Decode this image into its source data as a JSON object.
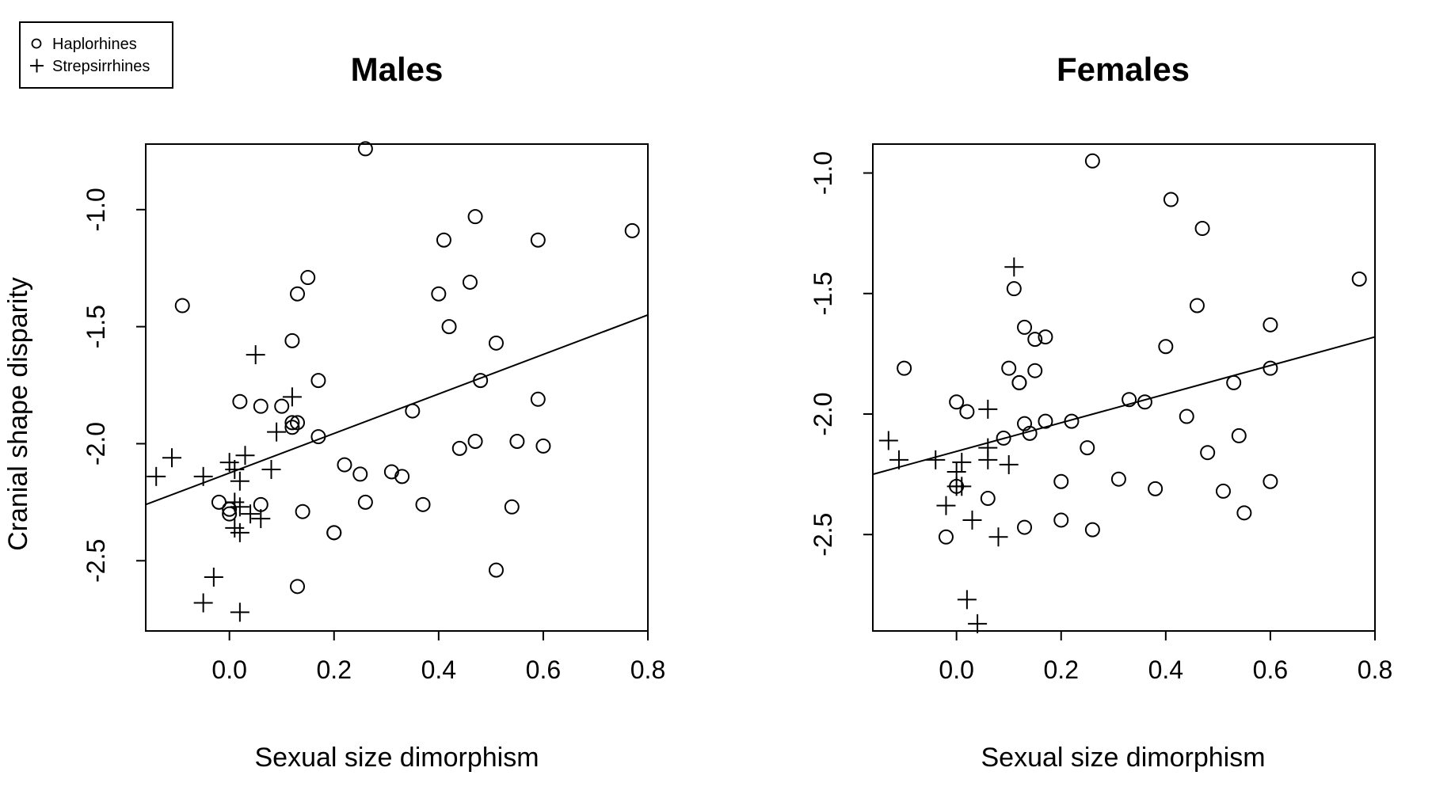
{
  "legend": {
    "items": [
      {
        "label": "Haplorhines",
        "marker": "circle"
      },
      {
        "label": "Strepsirrhines",
        "marker": "plus"
      }
    ],
    "placement": "top-left"
  },
  "shared": {
    "ylabel": "Cranial shape disparity"
  },
  "colors": {
    "ink": "#000000",
    "background": "#ffffff"
  },
  "chart_data": [
    {
      "type": "scatter",
      "title": "Males",
      "xlabel": "Sexual size dimorphism",
      "ylabel": "Cranial shape disparity",
      "xlim": [
        -0.16,
        0.8
      ],
      "ylim": [
        -2.8,
        -0.72
      ],
      "xticks": [
        0.0,
        0.2,
        0.4,
        0.6,
        0.8
      ],
      "xtick_labels": [
        "0.0",
        "0.2",
        "0.4",
        "0.6",
        "0.8"
      ],
      "yticks": [
        -2.5,
        -2.0,
        -1.5,
        -1.0
      ],
      "ytick_labels": [
        "-2.5",
        "-2.0",
        "-1.5",
        "-1.0"
      ],
      "grid": false,
      "fit_line": {
        "x": [
          -0.16,
          0.8
        ],
        "y": [
          -2.26,
          -1.45
        ]
      },
      "series": [
        {
          "name": "Haplorhines",
          "marker": "circle",
          "points": [
            [
              -0.09,
              -1.41
            ],
            [
              0.26,
              -0.74
            ],
            [
              0.15,
              -1.29
            ],
            [
              0.13,
              -1.36
            ],
            [
              0.12,
              -1.56
            ],
            [
              0.41,
              -1.13
            ],
            [
              0.47,
              -1.03
            ],
            [
              0.4,
              -1.36
            ],
            [
              0.46,
              -1.31
            ],
            [
              0.42,
              -1.5
            ],
            [
              0.59,
              -1.13
            ],
            [
              0.77,
              -1.09
            ],
            [
              0.51,
              -1.57
            ],
            [
              0.48,
              -1.73
            ],
            [
              0.17,
              -1.73
            ],
            [
              0.02,
              -1.82
            ],
            [
              0.06,
              -1.84
            ],
            [
              0.1,
              -1.84
            ],
            [
              0.12,
              -1.91
            ],
            [
              0.12,
              -1.93
            ],
            [
              0.13,
              -1.91
            ],
            [
              0.17,
              -1.97
            ],
            [
              0.35,
              -1.86
            ],
            [
              0.59,
              -1.81
            ],
            [
              0.44,
              -2.02
            ],
            [
              0.47,
              -1.99
            ],
            [
              0.55,
              -1.99
            ],
            [
              0.6,
              -2.01
            ],
            [
              0.22,
              -2.09
            ],
            [
              0.25,
              -2.13
            ],
            [
              0.31,
              -2.12
            ],
            [
              0.33,
              -2.14
            ],
            [
              -0.02,
              -2.25
            ],
            [
              0.0,
              -2.28
            ],
            [
              0.0,
              -2.3
            ],
            [
              0.06,
              -2.26
            ],
            [
              0.14,
              -2.29
            ],
            [
              0.26,
              -2.25
            ],
            [
              0.37,
              -2.26
            ],
            [
              0.54,
              -2.27
            ],
            [
              0.2,
              -2.38
            ],
            [
              0.2,
              -2.38
            ],
            [
              0.13,
              -2.61
            ],
            [
              0.51,
              -2.54
            ]
          ]
        },
        {
          "name": "Strepsirrhines",
          "marker": "plus",
          "points": [
            [
              0.05,
              -1.62
            ],
            [
              0.12,
              -1.8
            ],
            [
              0.09,
              -1.95
            ],
            [
              -0.11,
              -2.06
            ],
            [
              0.0,
              -2.08
            ],
            [
              0.03,
              -2.05
            ],
            [
              -0.14,
              -2.14
            ],
            [
              -0.05,
              -2.14
            ],
            [
              0.01,
              -2.11
            ],
            [
              0.02,
              -2.16
            ],
            [
              0.08,
              -2.11
            ],
            [
              0.01,
              -2.25
            ],
            [
              0.02,
              -2.27
            ],
            [
              0.04,
              -2.3
            ],
            [
              0.06,
              -2.32
            ],
            [
              0.01,
              -2.36
            ],
            [
              0.02,
              -2.38
            ],
            [
              -0.03,
              -2.57
            ],
            [
              -0.05,
              -2.68
            ],
            [
              0.02,
              -2.72
            ]
          ]
        }
      ]
    },
    {
      "type": "scatter",
      "title": "Females",
      "xlabel": "Sexual size dimorphism",
      "ylabel": "",
      "xlim": [
        -0.16,
        0.8
      ],
      "ylim": [
        -2.9,
        -0.88
      ],
      "xticks": [
        0.0,
        0.2,
        0.4,
        0.6,
        0.8
      ],
      "xtick_labels": [
        "0.0",
        "0.2",
        "0.4",
        "0.6",
        "0.8"
      ],
      "yticks": [
        -2.5,
        -2.0,
        -1.5,
        -1.0
      ],
      "ytick_labels": [
        "-2.5",
        "-2.0",
        "-1.5",
        "-1.0"
      ],
      "grid": false,
      "fit_line": {
        "x": [
          -0.16,
          0.8
        ],
        "y": [
          -2.25,
          -1.68
        ]
      },
      "series": [
        {
          "name": "Haplorhines",
          "marker": "circle",
          "points": [
            [
              0.26,
              -0.95
            ],
            [
              0.41,
              -1.11
            ],
            [
              0.47,
              -1.23
            ],
            [
              0.77,
              -1.44
            ],
            [
              0.11,
              -1.48
            ],
            [
              0.46,
              -1.55
            ],
            [
              0.6,
              -1.63
            ],
            [
              0.13,
              -1.64
            ],
            [
              0.15,
              -1.69
            ],
            [
              0.17,
              -1.68
            ],
            [
              0.4,
              -1.72
            ],
            [
              -0.1,
              -1.81
            ],
            [
              0.1,
              -1.81
            ],
            [
              0.15,
              -1.82
            ],
            [
              0.6,
              -1.81
            ],
            [
              0.12,
              -1.87
            ],
            [
              0.12,
              -1.87
            ],
            [
              0.53,
              -1.87
            ],
            [
              0.0,
              -1.95
            ],
            [
              0.02,
              -1.99
            ],
            [
              0.33,
              -1.94
            ],
            [
              0.36,
              -1.95
            ],
            [
              0.13,
              -2.04
            ],
            [
              0.17,
              -2.03
            ],
            [
              0.22,
              -2.03
            ],
            [
              0.44,
              -2.01
            ],
            [
              0.09,
              -2.1
            ],
            [
              0.14,
              -2.08
            ],
            [
              0.54,
              -2.09
            ],
            [
              0.25,
              -2.14
            ],
            [
              0.48,
              -2.16
            ],
            [
              0.0,
              -2.3
            ],
            [
              0.06,
              -2.35
            ],
            [
              0.2,
              -2.28
            ],
            [
              0.31,
              -2.27
            ],
            [
              0.38,
              -2.31
            ],
            [
              0.51,
              -2.32
            ],
            [
              0.6,
              -2.28
            ],
            [
              -0.02,
              -2.51
            ],
            [
              0.13,
              -2.47
            ],
            [
              0.2,
              -2.44
            ],
            [
              0.26,
              -2.48
            ],
            [
              0.55,
              -2.41
            ]
          ]
        },
        {
          "name": "Strepsirrhines",
          "marker": "plus",
          "points": [
            [
              0.11,
              -1.39
            ],
            [
              0.06,
              -1.98
            ],
            [
              -0.13,
              -2.11
            ],
            [
              -0.11,
              -2.19
            ],
            [
              -0.04,
              -2.19
            ],
            [
              0.01,
              -2.2
            ],
            [
              0.0,
              -2.24
            ],
            [
              0.06,
              -2.14
            ],
            [
              0.06,
              -2.19
            ],
            [
              0.1,
              -2.21
            ],
            [
              0.0,
              -2.3
            ],
            [
              0.01,
              -2.3
            ],
            [
              -0.02,
              -2.38
            ],
            [
              0.03,
              -2.44
            ],
            [
              0.08,
              -2.51
            ],
            [
              0.02,
              -2.77
            ],
            [
              0.04,
              -2.87
            ]
          ]
        }
      ]
    }
  ]
}
